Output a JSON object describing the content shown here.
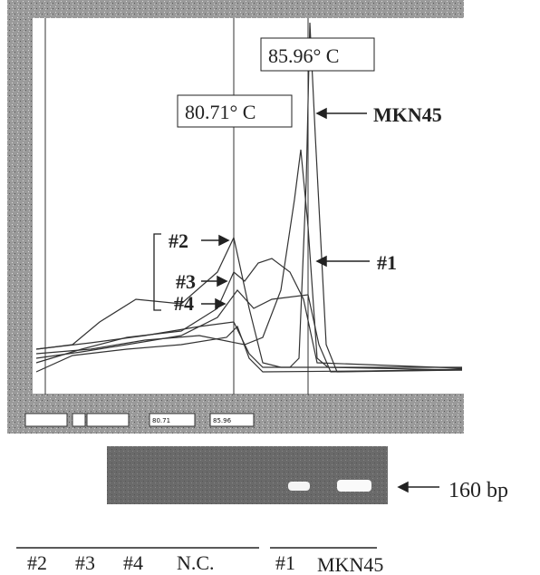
{
  "melt_curve": {
    "peak_labels": [
      "85.96° C",
      "80.71° C"
    ],
    "annotations": [
      "MKN45",
      "#1",
      "#2",
      "#3",
      "#4"
    ],
    "status_fields": [
      "80.71",
      "85.96"
    ]
  },
  "gel": {
    "band_label": "160 bp",
    "lanes": [
      "#2",
      "#3",
      "#4",
      "N.C.",
      "#1",
      "MKN45"
    ]
  }
}
